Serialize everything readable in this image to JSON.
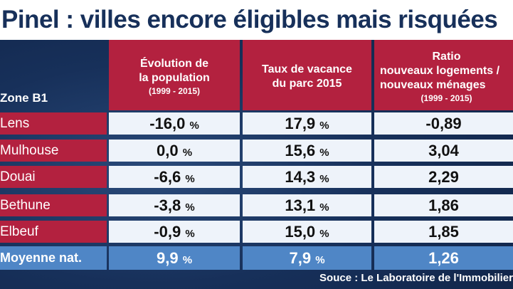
{
  "title": "Pinel : villes encore éligibles mais risquées",
  "zone_label": "Zone B1",
  "columns": [
    {
      "lines": [
        "Évolution de",
        "la population"
      ],
      "years": "(1999 - 2015)"
    },
    {
      "lines": [
        "Taux de vacance",
        "du parc 2015"
      ],
      "years": ""
    },
    {
      "lines": [
        "Ratio",
        "nouveaux logements /",
        "nouveaux ménages"
      ],
      "years": "(1999 - 2015)"
    }
  ],
  "rows": [
    {
      "city": "Lens",
      "pop": "-16,0",
      "vac": "17,9",
      "ratio": "-0,89"
    },
    {
      "city": "Mulhouse",
      "pop": "0,0",
      "vac": "15,6",
      "ratio": "3,04"
    },
    {
      "city": "Douai",
      "pop": "-6,6",
      "vac": "14,3",
      "ratio": "2,29"
    },
    {
      "city": "Bethune",
      "pop": "-3,8",
      "vac": "13,1",
      "ratio": "1,86"
    },
    {
      "city": "Elbeuf",
      "pop": "-0,9",
      "vac": "15,0",
      "ratio": "1,85"
    }
  ],
  "pct_unit": "%",
  "average": {
    "label": "Moyenne nat.",
    "pop": "9,9",
    "vac": "7,9",
    "ratio": "1,26"
  },
  "source": "Souce : Le Laboratoire de l'Immobilier",
  "colors": {
    "header_red": "#b3213f",
    "average_blue": "#4f86c6",
    "cell_bg": "#eef3fa",
    "title_navy": "#17305a"
  }
}
